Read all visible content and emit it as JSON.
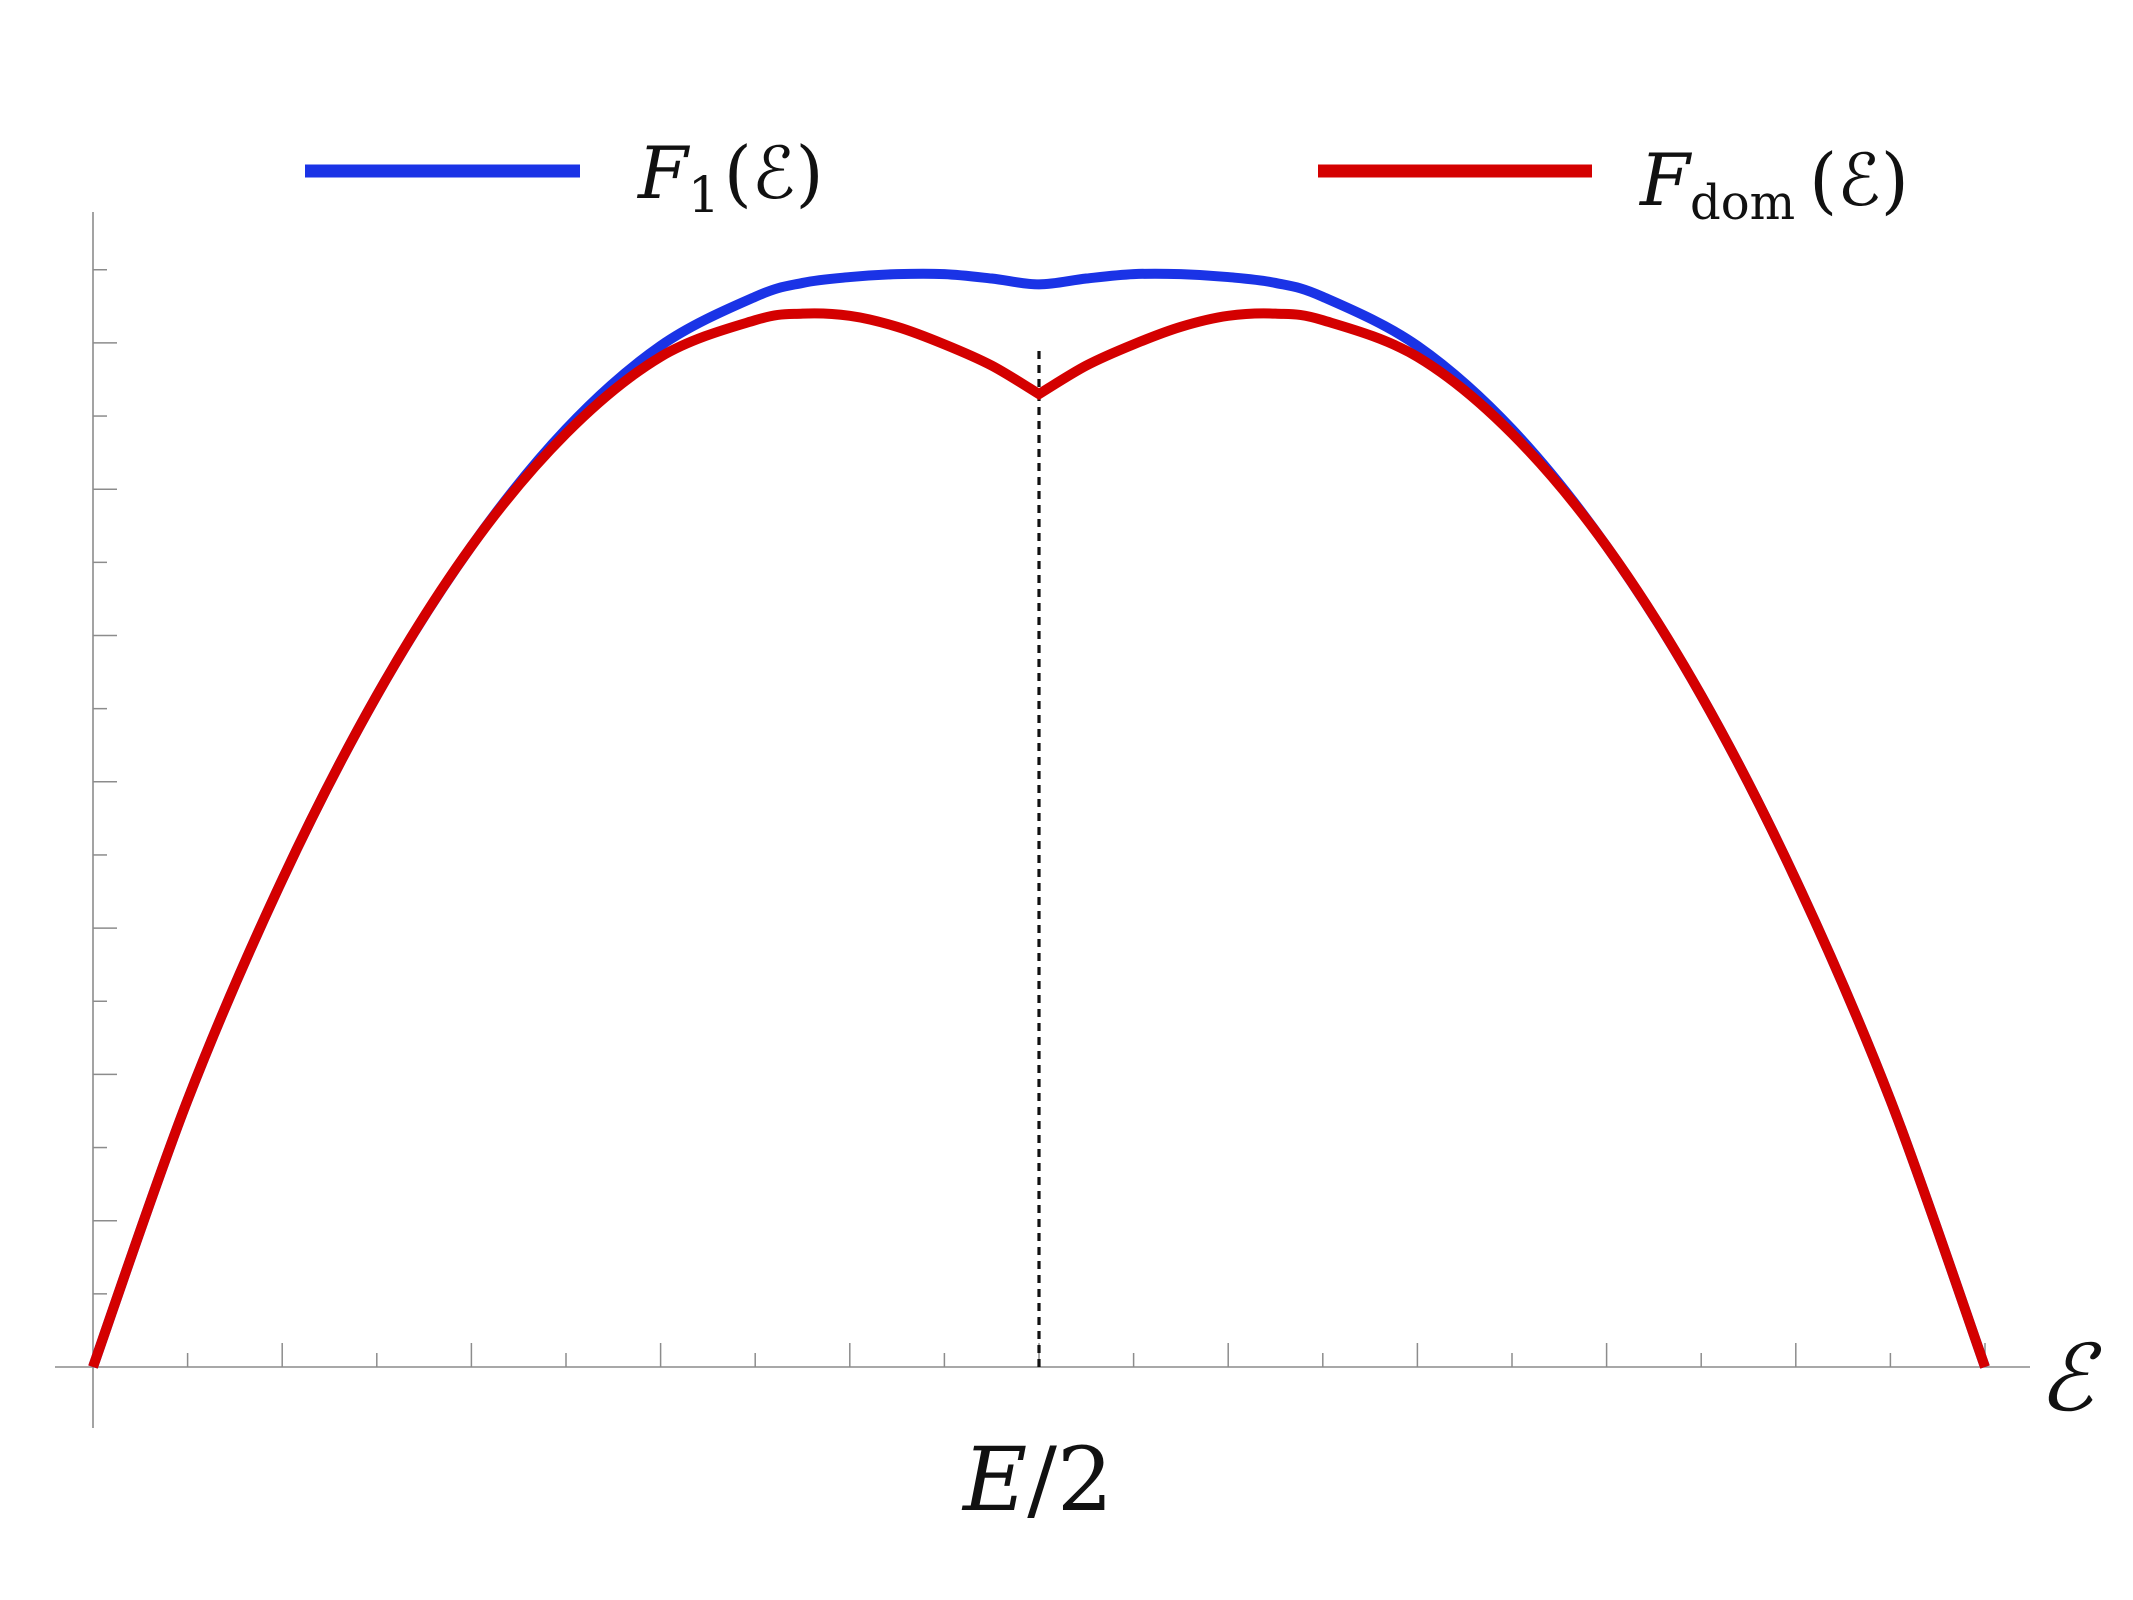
{
  "chart_data": {
    "type": "line",
    "title": "",
    "xlabel": "ℰ",
    "ylabel": "",
    "xlim": [
      0,
      2
    ],
    "ylim": [
      -0.05,
      1.55
    ],
    "x_ticks": {
      "major_every": 0.2,
      "minor_every": 0.1,
      "labels": []
    },
    "y_ticks": {
      "major_every": 0.2,
      "minor_every": 0.1,
      "labels": []
    },
    "grid": false,
    "legend_position": "top",
    "annotation": {
      "type": "vertical-dashed-line",
      "x": 1,
      "y_from": 0,
      "y_to": 1.39,
      "label": {
        "main": "E",
        "rest": "/2"
      }
    },
    "legend_entries": [
      {
        "base": "F",
        "sub": "1",
        "arg": "(ℰ)"
      },
      {
        "base": "F",
        "sub": "dom",
        "arg": "(ℰ)"
      }
    ],
    "series": [
      {
        "color": "#1a33e6",
        "x": [
          0,
          0.1,
          0.2,
          0.3,
          0.4,
          0.5,
          0.6,
          0.7,
          0.75,
          0.8,
          0.85,
          0.9,
          0.95,
          1.0,
          1.05,
          1.1,
          1.15,
          1.2,
          1.25,
          1.3,
          1.4,
          1.5,
          1.6,
          1.7,
          1.8,
          1.9,
          2.0
        ],
        "y": [
          0,
          0.365,
          0.666,
          0.918,
          1.122,
          1.282,
          1.396,
          1.463,
          1.482,
          1.49,
          1.494,
          1.494,
          1.488,
          1.48,
          1.488,
          1.494,
          1.494,
          1.49,
          1.482,
          1.463,
          1.396,
          1.282,
          1.122,
          0.918,
          0.666,
          0.365,
          0
        ]
      },
      {
        "color": "#d40000",
        "x": [
          0,
          0.1,
          0.2,
          0.3,
          0.4,
          0.5,
          0.6,
          0.7,
          0.75,
          0.8,
          0.85,
          0.9,
          0.95,
          1.0,
          1.05,
          1.1,
          1.15,
          1.2,
          1.25,
          1.3,
          1.4,
          1.5,
          1.6,
          1.7,
          1.8,
          1.9,
          2.0
        ],
        "y": [
          0,
          0.365,
          0.666,
          0.918,
          1.122,
          1.276,
          1.381,
          1.431,
          1.44,
          1.437,
          1.422,
          1.398,
          1.369,
          1.33,
          1.369,
          1.398,
          1.422,
          1.437,
          1.44,
          1.431,
          1.381,
          1.276,
          1.122,
          0.918,
          0.666,
          0.365,
          0
        ]
      }
    ]
  }
}
